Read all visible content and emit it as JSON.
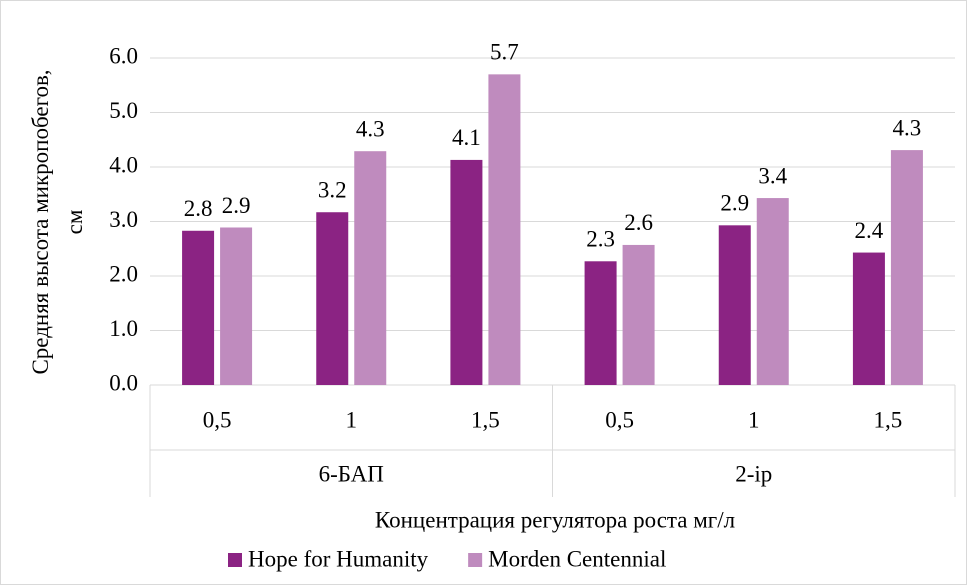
{
  "chart_data": {
    "type": "bar",
    "y_label": [
      "Средняя высота микропобегов,",
      "см"
    ],
    "x_label": "Концентрация регулятора роста мг/л",
    "groups": [
      {
        "label": "6-БАП",
        "categories": [
          "0,5",
          "1",
          "1,5"
        ]
      },
      {
        "label": "2-ip",
        "categories": [
          "0,5",
          "1",
          "1,5"
        ]
      }
    ],
    "series": [
      {
        "name": "Hope for Humanity",
        "color": "#8b2383",
        "values": [
          2.83,
          3.17,
          4.13,
          2.27,
          2.93,
          2.43
        ],
        "value_labels": [
          "2.8",
          "3.2",
          "4.1",
          "2.3",
          "2.9",
          "2.4"
        ]
      },
      {
        "name": "Morden Centennial",
        "color": "#bf8bbe",
        "values": [
          2.89,
          4.29,
          5.7,
          2.57,
          3.43,
          4.31
        ],
        "value_labels": [
          "2.9",
          "4.3",
          "5.7",
          "2.6",
          "3.4",
          "4.3"
        ]
      }
    ],
    "ylim": [
      0,
      6
    ],
    "yticks": [
      {
        "value": 0,
        "label": "0.0"
      },
      {
        "value": 1,
        "label": "1.0"
      },
      {
        "value": 2,
        "label": "2.0"
      },
      {
        "value": 3,
        "label": "3.0"
      },
      {
        "value": 4,
        "label": "4.0"
      },
      {
        "value": 5,
        "label": "5.0"
      },
      {
        "value": 6,
        "label": "6.0"
      }
    ],
    "grid": true,
    "legend": "bottom"
  }
}
